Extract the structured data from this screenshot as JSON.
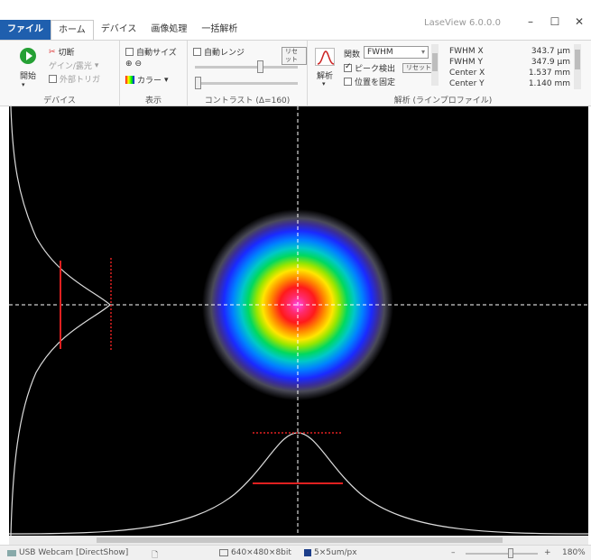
{
  "app": {
    "title": "LaseView 6.0.0.0"
  },
  "window_controls": {
    "minimize": "–",
    "maximize": "☐",
    "close": "✕"
  },
  "tabs": [
    {
      "label": "ファイル"
    },
    {
      "label": "ホーム"
    },
    {
      "label": "デバイス"
    },
    {
      "label": "画像処理"
    },
    {
      "label": "一括解析"
    }
  ],
  "ribbon": {
    "device": {
      "start_label": "開始",
      "disconnect_label": "切断",
      "gain_label": "ゲイン/露光",
      "trigger_label": "外部トリガ",
      "group_label": "デバイス"
    },
    "display": {
      "auto_size_label": "自動サイズ",
      "color_label": "カラー",
      "group_label": "表示"
    },
    "contrast": {
      "auto_range_label": "自動レンジ",
      "reset_label": "リセット",
      "group_label": "コントラスト (Δ=160)"
    },
    "analysis": {
      "analyze_label": "解析",
      "function_label": "関数",
      "function_value": "FWHM",
      "peak_detect_label": "ピーク検出",
      "peak_reset_label": "リセット",
      "fix_position_label": "位置を固定",
      "group_label": "解析 (ラインプロファイル)",
      "measurements": [
        {
          "name": "FWHM X",
          "value": "343.7 μm"
        },
        {
          "name": "FWHM Y",
          "value": "347.9 μm"
        },
        {
          "name": "Center X",
          "value": "1.537 mm"
        },
        {
          "name": "Center Y",
          "value": "1.140 mm"
        }
      ]
    }
  },
  "status": {
    "camera": "USB Webcam [DirectShow]",
    "resolution": "640×480×8bit",
    "pixel_size": "5×5um/px",
    "zoom": "180%",
    "zoom_plus": "+",
    "zoom_minus": "–"
  },
  "colors": {
    "file_tab": "#1f5fae",
    "start_button": "#25a034",
    "profile_marker": "#e02020",
    "profile_curve": "#dcdcdc",
    "background": "#000000"
  }
}
